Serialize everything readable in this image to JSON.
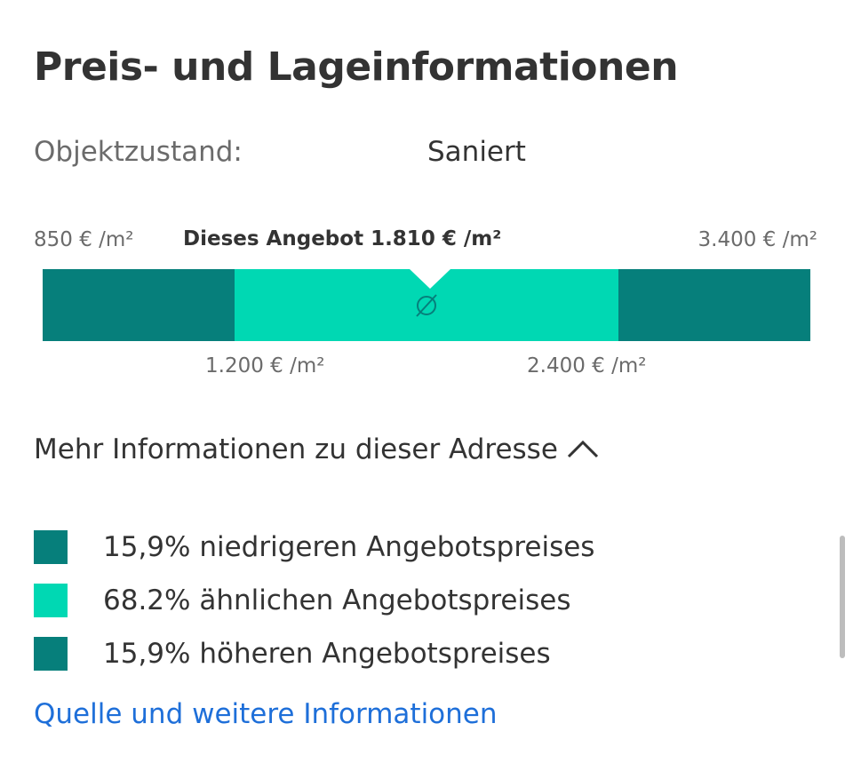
{
  "section": {
    "title": "Preis- und Lageinformationen"
  },
  "condition": {
    "label": "Objektzustand:",
    "value": "Saniert"
  },
  "price_bar": {
    "min_label": "850 € /m²",
    "max_label": "3.400 € /m²",
    "offer_label": "Dieses Angebot 1.810 € /m²",
    "lower_bound_label": "1.200 € /m²",
    "upper_bound_label": "2.400 € /m²",
    "min_value": 850,
    "max_value": 3400,
    "offer_value": 1810,
    "lower_bound_value": 1200,
    "upper_bound_value": 2400,
    "average_icon": "average-diameter-icon",
    "colors": {
      "dark": "#067f7b",
      "light": "#00d8b3"
    }
  },
  "more_info": {
    "label": "Mehr Informationen zu dieser Adresse",
    "icon": "chevron-up-icon"
  },
  "legend": [
    {
      "label": "15,9% niedrigeren Angebotspreises",
      "color": "#067f7b"
    },
    {
      "label": "68.2% ähnlichen Angebotspreises",
      "color": "#00d8b3"
    },
    {
      "label": "15,9% höheren Angebotspreises",
      "color": "#067f7b"
    }
  ],
  "source_link": {
    "label": "Quelle und weitere Informationen",
    "color": "#1e6fd9"
  }
}
